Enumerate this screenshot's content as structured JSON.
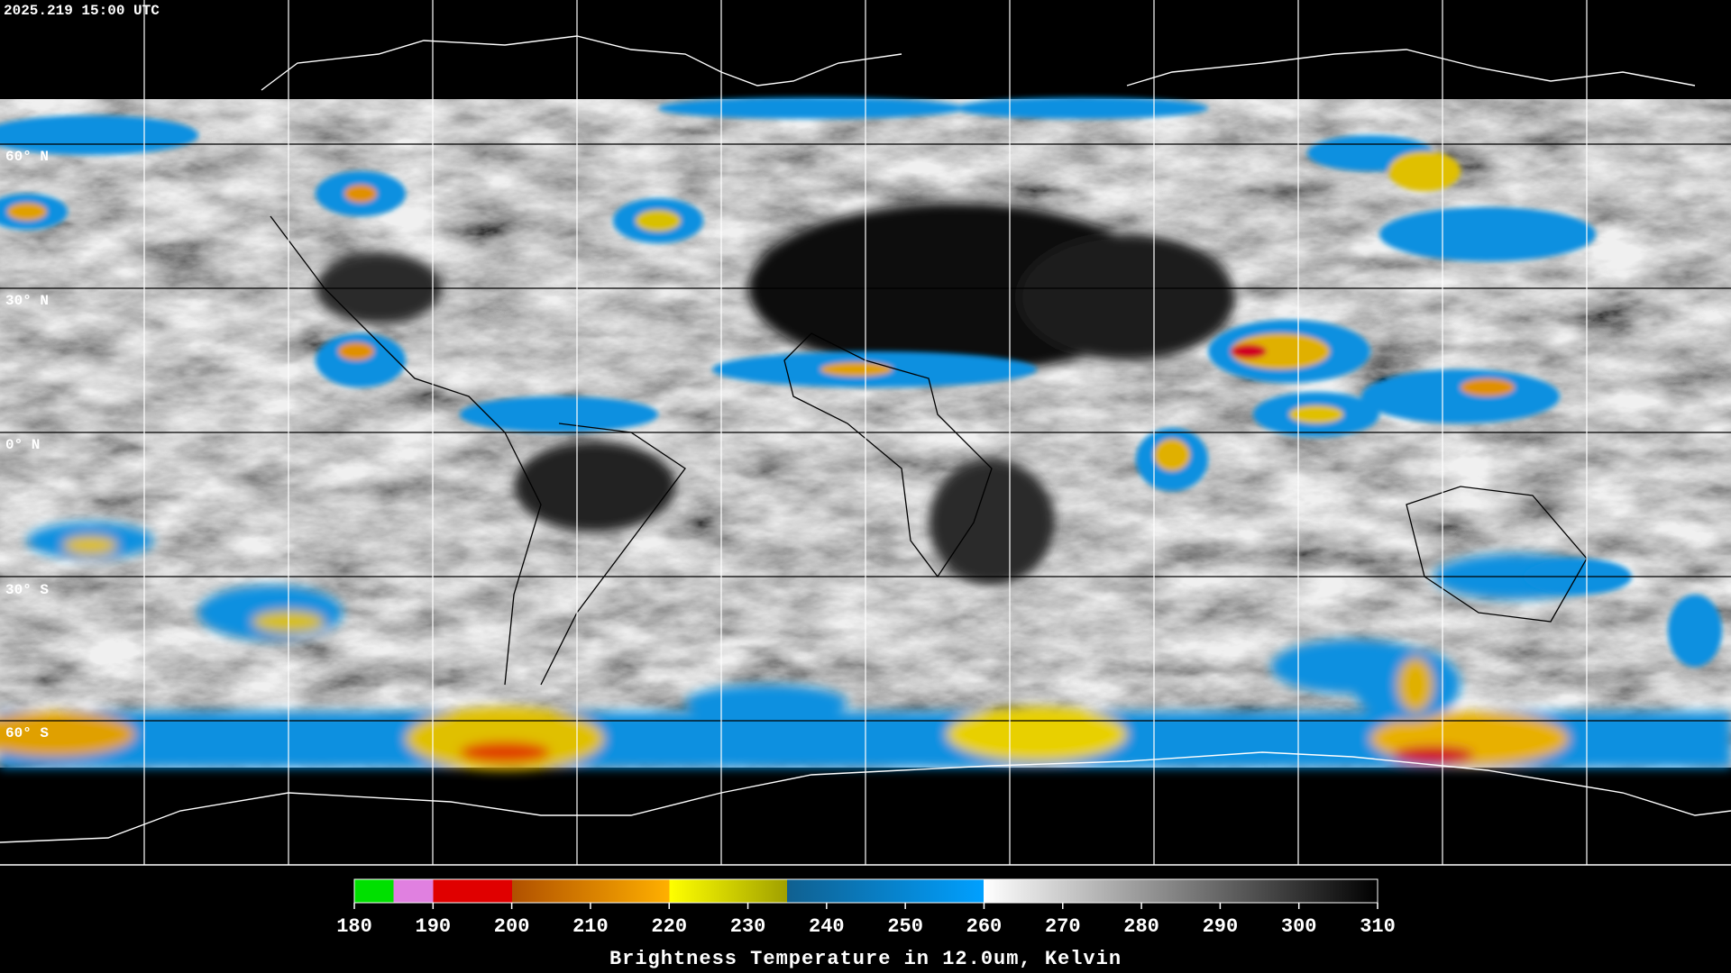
{
  "timestamp": "2025.219 15:00 UTC",
  "latitude_labels": [
    "60° N",
    "30° N",
    "0° N",
    "30° S",
    "60° S"
  ],
  "colorbar": {
    "ticks": [
      180,
      190,
      200,
      210,
      220,
      230,
      240,
      250,
      260,
      270,
      280,
      290,
      300,
      310
    ],
    "label": "Brightness Temperature in 12.0um, Kelvin"
  }
}
